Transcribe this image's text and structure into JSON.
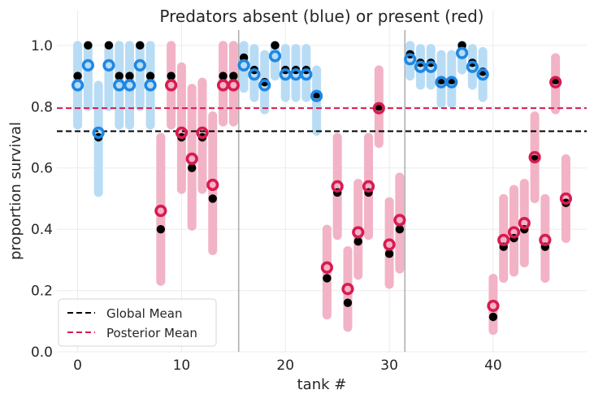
{
  "chart_data": {
    "type": "scatter",
    "title": "Predators absent (blue) or present (red)",
    "xlabel": "tank #",
    "ylabel": "proportion survival",
    "xlim": [
      -2,
      49
    ],
    "ylim": [
      0,
      1.05
    ],
    "x_ticks": [
      0,
      10,
      20,
      30,
      40
    ],
    "x_tick_labels": [
      "0",
      "10",
      "20",
      "30",
      "40"
    ],
    "y_ticks": [
      0.0,
      0.2,
      0.4,
      0.6,
      0.8,
      1.0
    ],
    "y_tick_labels": [
      "0.0",
      "0.2",
      "0.4",
      "0.6",
      "0.8",
      "1.0"
    ],
    "grid": true,
    "separators_x": [
      15.5,
      31.5
    ],
    "reference_lines": [
      {
        "name": "Global Mean",
        "y": 0.72,
        "color": "#000000",
        "dash": true
      },
      {
        "name": "Posterior Mean",
        "y": 0.795,
        "color": "#d81b50",
        "dash": true
      }
    ],
    "legend": {
      "position": "bottom-left",
      "entries": [
        {
          "label": "Global Mean",
          "color": "#000000"
        },
        {
          "label": "Posterior Mean",
          "color": "#d81b50"
        }
      ]
    },
    "colors": {
      "absent": "#1e88e5",
      "absent_interval": "#b9dcf5",
      "present": "#d81b50",
      "present_interval": "#f2b3c6",
      "observed": "#000000"
    },
    "tanks": [
      {
        "tank": 0,
        "group": "absent",
        "observed": 0.9,
        "posterior": 0.87,
        "lower": 0.74,
        "upper": 1.0
      },
      {
        "tank": 1,
        "group": "absent",
        "observed": 1.0,
        "posterior": 0.935,
        "lower": 0.8,
        "upper": 1.0
      },
      {
        "tank": 2,
        "group": "absent",
        "observed": 0.7,
        "posterior": 0.715,
        "lower": 0.52,
        "upper": 0.87
      },
      {
        "tank": 3,
        "group": "absent",
        "observed": 1.0,
        "posterior": 0.935,
        "lower": 0.8,
        "upper": 1.0
      },
      {
        "tank": 4,
        "group": "absent",
        "observed": 0.9,
        "posterior": 0.87,
        "lower": 0.74,
        "upper": 1.0
      },
      {
        "tank": 5,
        "group": "absent",
        "observed": 0.9,
        "posterior": 0.87,
        "lower": 0.74,
        "upper": 1.0
      },
      {
        "tank": 6,
        "group": "absent",
        "observed": 1.0,
        "posterior": 0.935,
        "lower": 0.8,
        "upper": 1.0
      },
      {
        "tank": 7,
        "group": "absent",
        "observed": 0.9,
        "posterior": 0.87,
        "lower": 0.74,
        "upper": 1.0
      },
      {
        "tank": 8,
        "group": "present",
        "observed": 0.4,
        "posterior": 0.46,
        "lower": 0.23,
        "upper": 0.7
      },
      {
        "tank": 9,
        "group": "present",
        "observed": 0.9,
        "posterior": 0.87,
        "lower": 0.74,
        "upper": 1.0
      },
      {
        "tank": 10,
        "group": "present",
        "observed": 0.7,
        "posterior": 0.715,
        "lower": 0.53,
        "upper": 0.93
      },
      {
        "tank": 11,
        "group": "present",
        "observed": 0.6,
        "posterior": 0.63,
        "lower": 0.41,
        "upper": 0.86
      },
      {
        "tank": 12,
        "group": "present",
        "observed": 0.7,
        "posterior": 0.715,
        "lower": 0.53,
        "upper": 0.88
      },
      {
        "tank": 13,
        "group": "present",
        "observed": 0.5,
        "posterior": 0.545,
        "lower": 0.33,
        "upper": 0.77
      },
      {
        "tank": 14,
        "group": "present",
        "observed": 0.9,
        "posterior": 0.87,
        "lower": 0.75,
        "upper": 1.0
      },
      {
        "tank": 15,
        "group": "present",
        "observed": 0.9,
        "posterior": 0.87,
        "lower": 0.75,
        "upper": 1.0
      },
      {
        "tank": 16,
        "group": "absent",
        "observed": 0.96,
        "posterior": 0.935,
        "lower": 0.86,
        "upper": 1.0
      },
      {
        "tank": 17,
        "group": "absent",
        "observed": 0.92,
        "posterior": 0.905,
        "lower": 0.83,
        "upper": 0.99
      },
      {
        "tank": 18,
        "group": "absent",
        "observed": 0.88,
        "posterior": 0.87,
        "lower": 0.79,
        "upper": 0.97
      },
      {
        "tank": 19,
        "group": "absent",
        "observed": 1.0,
        "posterior": 0.965,
        "lower": 0.9,
        "upper": 1.0
      },
      {
        "tank": 20,
        "group": "absent",
        "observed": 0.92,
        "posterior": 0.905,
        "lower": 0.83,
        "upper": 0.99
      },
      {
        "tank": 21,
        "group": "absent",
        "observed": 0.92,
        "posterior": 0.905,
        "lower": 0.83,
        "upper": 0.99
      },
      {
        "tank": 22,
        "group": "absent",
        "observed": 0.92,
        "posterior": 0.905,
        "lower": 0.83,
        "upper": 0.99
      },
      {
        "tank": 23,
        "group": "absent",
        "observed": 0.84,
        "posterior": 0.835,
        "lower": 0.72,
        "upper": 0.92
      },
      {
        "tank": 24,
        "group": "present",
        "observed": 0.24,
        "posterior": 0.275,
        "lower": 0.12,
        "upper": 0.4
      },
      {
        "tank": 25,
        "group": "present",
        "observed": 0.52,
        "posterior": 0.54,
        "lower": 0.38,
        "upper": 0.7
      },
      {
        "tank": 26,
        "group": "present",
        "observed": 0.16,
        "posterior": 0.205,
        "lower": 0.08,
        "upper": 0.33
      },
      {
        "tank": 27,
        "group": "present",
        "observed": 0.36,
        "posterior": 0.39,
        "lower": 0.25,
        "upper": 0.55
      },
      {
        "tank": 28,
        "group": "present",
        "observed": 0.52,
        "posterior": 0.54,
        "lower": 0.38,
        "upper": 0.7
      },
      {
        "tank": 29,
        "group": "present",
        "observed": 0.8,
        "posterior": 0.795,
        "lower": 0.68,
        "upper": 0.92
      },
      {
        "tank": 30,
        "group": "present",
        "observed": 0.32,
        "posterior": 0.35,
        "lower": 0.22,
        "upper": 0.49
      },
      {
        "tank": 31,
        "group": "present",
        "observed": 0.4,
        "posterior": 0.43,
        "lower": 0.27,
        "upper": 0.57
      },
      {
        "tank": 32,
        "group": "absent",
        "observed": 0.971,
        "posterior": 0.955,
        "lower": 0.9,
        "upper": 1.0
      },
      {
        "tank": 33,
        "group": "absent",
        "observed": 0.943,
        "posterior": 0.93,
        "lower": 0.87,
        "upper": 0.99
      },
      {
        "tank": 34,
        "group": "absent",
        "observed": 0.943,
        "posterior": 0.93,
        "lower": 0.87,
        "upper": 0.99
      },
      {
        "tank": 35,
        "group": "absent",
        "observed": 0.886,
        "posterior": 0.88,
        "lower": 0.81,
        "upper": 0.97
      },
      {
        "tank": 36,
        "group": "absent",
        "observed": 0.886,
        "posterior": 0.88,
        "lower": 0.81,
        "upper": 0.97
      },
      {
        "tank": 37,
        "group": "absent",
        "observed": 1.0,
        "posterior": 0.975,
        "lower": 0.92,
        "upper": 1.0
      },
      {
        "tank": 38,
        "group": "absent",
        "observed": 0.943,
        "posterior": 0.93,
        "lower": 0.87,
        "upper": 0.99
      },
      {
        "tank": 39,
        "group": "absent",
        "observed": 0.914,
        "posterior": 0.905,
        "lower": 0.83,
        "upper": 0.98
      },
      {
        "tank": 40,
        "group": "present",
        "observed": 0.114,
        "posterior": 0.15,
        "lower": 0.07,
        "upper": 0.24
      },
      {
        "tank": 41,
        "group": "present",
        "observed": 0.343,
        "posterior": 0.365,
        "lower": 0.24,
        "upper": 0.5
      },
      {
        "tank": 42,
        "group": "present",
        "observed": 0.371,
        "posterior": 0.39,
        "lower": 0.26,
        "upper": 0.53
      },
      {
        "tank": 43,
        "group": "present",
        "observed": 0.4,
        "posterior": 0.42,
        "lower": 0.29,
        "upper": 0.55
      },
      {
        "tank": 44,
        "group": "present",
        "observed": 0.629,
        "posterior": 0.635,
        "lower": 0.5,
        "upper": 0.77
      },
      {
        "tank": 45,
        "group": "present",
        "observed": 0.343,
        "posterior": 0.365,
        "lower": 0.24,
        "upper": 0.5
      },
      {
        "tank": 46,
        "group": "present",
        "observed": 0.886,
        "posterior": 0.88,
        "lower": 0.79,
        "upper": 0.96
      },
      {
        "tank": 47,
        "group": "present",
        "observed": 0.486,
        "posterior": 0.5,
        "lower": 0.37,
        "upper": 0.63
      }
    ]
  }
}
